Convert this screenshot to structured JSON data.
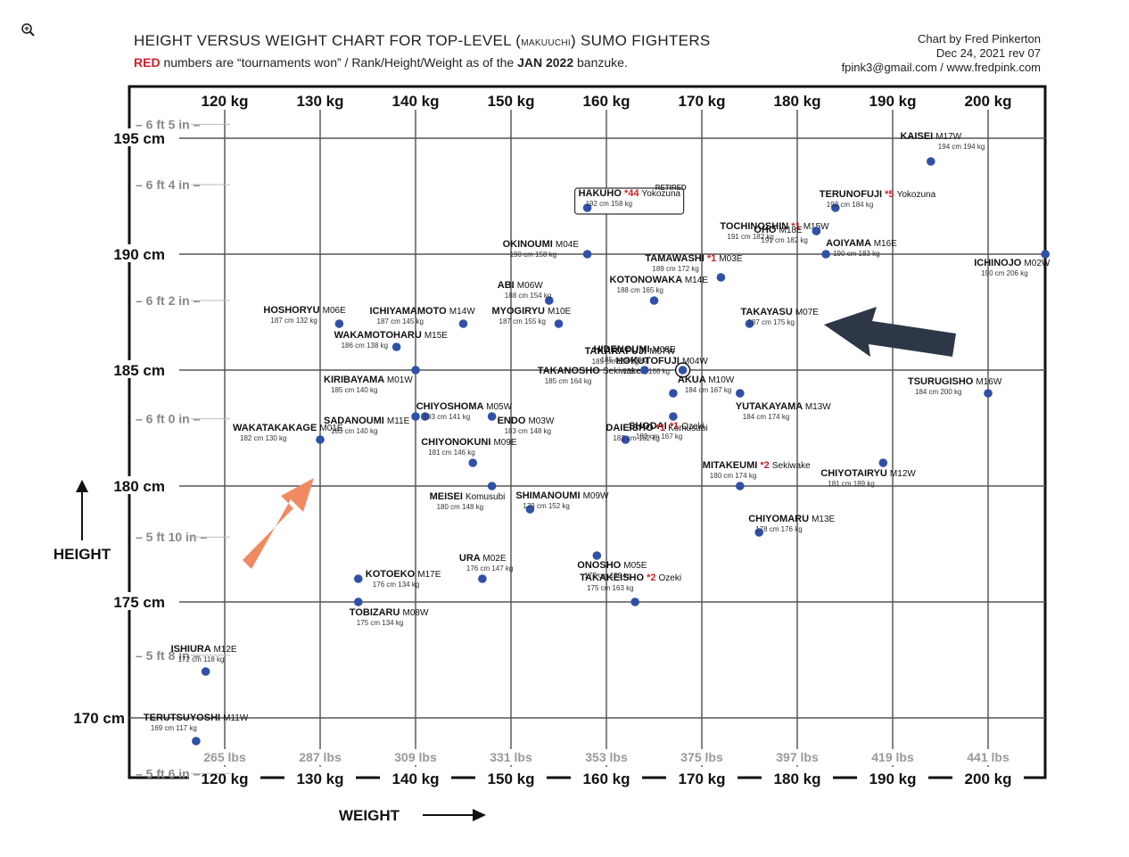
{
  "title": {
    "part1": "HEIGHT VERSUS WEIGHT CHART FOR TOP-LEVEL (",
    "small": "MAKUUCHI",
    "part2": ") SUMO FIGHTERS"
  },
  "subtitle": {
    "red": "RED",
    "part1": " numbers are “tournaments won” / Rank/Height/Weight as of the ",
    "bold": "JAN 2022",
    "part2": " banzuke."
  },
  "credit": {
    "line1": "Chart by Fred Pinkerton",
    "line2": "Dec 24, 2021 rev 07",
    "line3": "fpink3@gmail.com / www.fredpink.com"
  },
  "colors": {
    "dot": "#3050a8",
    "red": "#d0202a",
    "orange_arrow": "#ef8a62",
    "navy_arrow": "#2d3748"
  },
  "chart_data": {
    "type": "scatter",
    "xlabel": "WEIGHT",
    "ylabel": "HEIGHT",
    "xlim": [
      111,
      207
    ],
    "ylim": [
      168.6,
      196.9
    ],
    "x_ticks_kg": [
      {
        "v": 120,
        "label": "120 kg"
      },
      {
        "v": 130,
        "label": "130 kg"
      },
      {
        "v": 140,
        "label": "140 kg"
      },
      {
        "v": 150,
        "label": "150 kg"
      },
      {
        "v": 160,
        "label": "160 kg"
      },
      {
        "v": 170,
        "label": "170 kg"
      },
      {
        "v": 180,
        "label": "180 kg"
      },
      {
        "v": 190,
        "label": "190 kg"
      },
      {
        "v": 200,
        "label": "200 kg"
      }
    ],
    "x_ticks_lbs": [
      {
        "v": 120,
        "label": "265 lbs"
      },
      {
        "v": 130,
        "label": "287 lbs"
      },
      {
        "v": 140,
        "label": "309 lbs"
      },
      {
        "v": 150,
        "label": "331 lbs"
      },
      {
        "v": 160,
        "label": "353 lbs"
      },
      {
        "v": 170,
        "label": "375 lbs"
      },
      {
        "v": 180,
        "label": "397 lbs"
      },
      {
        "v": 190,
        "label": "419 lbs"
      },
      {
        "v": 200,
        "label": "441 lbs"
      }
    ],
    "y_ticks_cm": [
      {
        "v": 195,
        "label": "195 cm"
      },
      {
        "v": 190,
        "label": "190 cm"
      },
      {
        "v": 185,
        "label": "185 cm"
      },
      {
        "v": 180,
        "label": "180 cm"
      },
      {
        "v": 175,
        "label": "175 cm"
      },
      {
        "v": 170,
        "label": "170 cm"
      }
    ],
    "y_ticks_ft": [
      {
        "v": 195.6,
        "label": "6 ft 5 in"
      },
      {
        "v": 193.0,
        "label": "6 ft 4 in"
      },
      {
        "v": 188.0,
        "label": "6 ft 2 in"
      },
      {
        "v": 182.9,
        "label": "6 ft 0 in"
      },
      {
        "v": 177.8,
        "label": "5 ft 10 in"
      },
      {
        "v": 172.7,
        "label": "5 ft 8 in"
      },
      {
        "v": 167.6,
        "label": "5 ft 6 in"
      }
    ],
    "wrestlers": [
      {
        "name": "KAISEI",
        "rank": "M17W",
        "h": 194,
        "w": 194,
        "hw": "194 cm  194 kg",
        "wins": ""
      },
      {
        "name": "TERUNOFUJI",
        "rank": "Yokozuna",
        "h": 192,
        "w": 184,
        "hw": "192 cm  184 kg",
        "wins": "*5"
      },
      {
        "name": "TOCHINOSHIN",
        "rank": "M15W",
        "h": 191,
        "w": 182,
        "hw": "191 cm  182 kg",
        "wins": "*1"
      },
      {
        "name": "OHO",
        "rank": "M18E",
        "h": 191,
        "w": 182,
        "hw": "191 cm  182 kg",
        "wins": ""
      },
      {
        "name": "HAKUHO",
        "rank": "Yokozuna",
        "h": 192,
        "w": 158,
        "hw": "192 cm  158 kg",
        "wins": "*44",
        "note": "RETIRED"
      },
      {
        "name": "OKINOUMI",
        "rank": "M04E",
        "h": 190,
        "w": 158,
        "hw": "190 cm  158 kg",
        "wins": ""
      },
      {
        "name": "TAMAWASHI",
        "rank": "M03E",
        "h": 189,
        "w": 172,
        "hw": "189 cm  172 kg",
        "wins": "*1"
      },
      {
        "name": "AOIYAMA",
        "rank": "M16E",
        "h": 190,
        "w": 183,
        "hw": "190 cm  183 kg",
        "wins": ""
      },
      {
        "name": "ICHINOJO",
        "rank": "M02W",
        "h": 190,
        "w": 206,
        "hw": "190 cm  206 kg",
        "wins": ""
      },
      {
        "name": "ABI",
        "rank": "M06W",
        "h": 188,
        "w": 154,
        "hw": "188 cm  154 kg",
        "wins": ""
      },
      {
        "name": "KOTONOWAKA",
        "rank": "M14E",
        "h": 188,
        "w": 165,
        "hw": "188 cm  165 kg",
        "wins": ""
      },
      {
        "name": "HOSHORYU",
        "rank": "M06E",
        "h": 187,
        "w": 132,
        "hw": "187 cm  132 kg",
        "wins": ""
      },
      {
        "name": "ICHIYAMAMOTO",
        "rank": "M14W",
        "h": 187,
        "w": 145,
        "hw": "187 cm  145 kg",
        "wins": ""
      },
      {
        "name": "MYOGIRYU",
        "rank": "M10E",
        "h": 187,
        "w": 155,
        "hw": "187 cm  155 kg",
        "wins": ""
      },
      {
        "name": "HOKUTOFUJI",
        "rank": "M04W",
        "h": 185,
        "w": 168,
        "hw": "185 cm  168 kg",
        "wins": ""
      },
      {
        "name": "TAKARAFUJI",
        "rank": "M07W",
        "h": 185,
        "w": 168,
        "hw": "185 cm  168 kg",
        "wins": ""
      },
      {
        "name": "HIDENOUMI",
        "rank": "M08E",
        "h": 185,
        "w": 168,
        "hw": "185 cm  168 kg",
        "wins": ""
      },
      {
        "name": "TAKAYASU",
        "rank": "M07E",
        "h": 187,
        "w": 175,
        "hw": "187 cm  175 kg",
        "wins": ""
      },
      {
        "name": "WAKAMOTOHARU",
        "rank": "M15E",
        "h": 186,
        "w": 138,
        "hw": "186 cm  138 kg",
        "wins": ""
      },
      {
        "name": "KIRIBAYAMA",
        "rank": "M01W",
        "h": 185,
        "w": 140,
        "hw": "185 cm  140 kg",
        "wins": ""
      },
      {
        "name": "TAKANOSHO",
        "rank": "Sekiwake",
        "h": 185,
        "w": 164,
        "hw": "185 cm  164 kg",
        "wins": ""
      },
      {
        "name": "AKUA",
        "rank": "M10W",
        "h": 184,
        "w": 167,
        "hw": "184 cm  167 kg",
        "wins": ""
      },
      {
        "name": "YUTAKAYAMA",
        "rank": "M13W",
        "h": 184,
        "w": 174,
        "hw": "184 cm  174 kg",
        "wins": ""
      },
      {
        "name": "TSURUGISHO",
        "rank": "M16W",
        "h": 184,
        "w": 200,
        "hw": "184 cm  200 kg",
        "wins": ""
      },
      {
        "name": "CHIYOSHOMA",
        "rank": "M05W",
        "h": 183,
        "w": 141,
        "hw": "183 cm  141 kg",
        "wins": ""
      },
      {
        "name": "SADANOUMI",
        "rank": "M11E",
        "h": 183,
        "w": 140,
        "hw": "183 cm  140 kg",
        "wins": ""
      },
      {
        "name": "ENDO",
        "rank": "M03W",
        "h": 183,
        "w": 148,
        "hw": "183 cm  148 kg",
        "wins": ""
      },
      {
        "name": "SHODAI",
        "rank": "Ozeki",
        "h": 183,
        "w": 167,
        "hw": "183 cm  167 kg",
        "wins": "*1"
      },
      {
        "name": "WAKATAKAKAGE",
        "rank": "M01E",
        "h": 182,
        "w": 130,
        "hw": "182 cm  130 kg",
        "wins": ""
      },
      {
        "name": "DAIEISHO",
        "rank": "Komusubi",
        "h": 182,
        "w": 162,
        "hw": "182 cm  162 kg",
        "wins": "*1"
      },
      {
        "name": "CHIYONOKUNI",
        "rank": "M09E",
        "h": 181,
        "w": 146,
        "hw": "181 cm  146 kg",
        "wins": ""
      },
      {
        "name": "MITAKEUMI",
        "rank": "Sekiwake",
        "h": 180,
        "w": 174,
        "hw": "180 cm  174 kg",
        "wins": "*2"
      },
      {
        "name": "CHIYOTAIRYU",
        "rank": "M12W",
        "h": 181,
        "w": 189,
        "hw": "181 cm  189 kg",
        "wins": ""
      },
      {
        "name": "MEISEI",
        "rank": "Komusubi",
        "h": 180,
        "w": 148,
        "hw": "180 cm  148 kg",
        "wins": ""
      },
      {
        "name": "SHIMANOUMI",
        "rank": "M09W",
        "h": 179,
        "w": 152,
        "hw": "179 cm  152 kg",
        "wins": ""
      },
      {
        "name": "CHIYOMARU",
        "rank": "M13E",
        "h": 178,
        "w": 176,
        "hw": "178 cm  176 kg",
        "wins": ""
      },
      {
        "name": "ONOSHO",
        "rank": "M05E",
        "h": 177,
        "w": 159,
        "hw": "177 cm  159 kg",
        "wins": ""
      },
      {
        "name": "URA",
        "rank": "M02E",
        "h": 176,
        "w": 147,
        "hw": "176 cm  147 kg",
        "wins": ""
      },
      {
        "name": "KOTOEKO",
        "rank": "M17E",
        "h": 176,
        "w": 134,
        "hw": "176 cm  134 kg",
        "wins": ""
      },
      {
        "name": "TAKAKEISHO",
        "rank": "Ozeki",
        "h": 175,
        "w": 163,
        "hw": "175 cm  163 kg",
        "wins": "*2"
      },
      {
        "name": "TOBIZARU",
        "rank": "M08W",
        "h": 175,
        "w": 134,
        "hw": "175 cm  134 kg",
        "wins": ""
      },
      {
        "name": "ISHIURA",
        "rank": "M12E",
        "h": 172,
        "w": 118,
        "hw": "172 cm  118 kg",
        "wins": ""
      },
      {
        "name": "TERUTSUYOSHI",
        "rank": "M11W",
        "h": 169,
        "w": 117,
        "hw": "169 cm  117 kg",
        "wins": ""
      }
    ]
  }
}
